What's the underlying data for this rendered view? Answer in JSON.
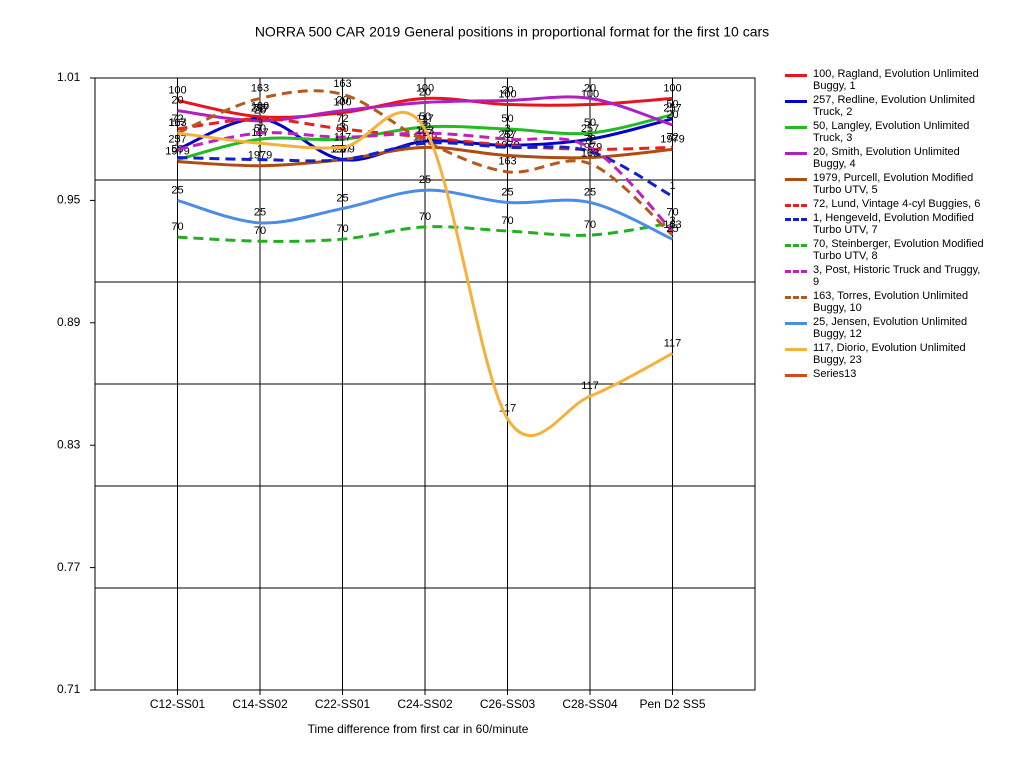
{
  "chart_data": {
    "type": "line",
    "title": "NORRA 500 CAR 2019  General positions in proportional format for the first 10 cars",
    "x_label": "Time difference from first car in 60/minute",
    "categories": [
      "C12-SS01",
      "C14-SS02",
      "C22-SS01",
      "C24-SS02",
      "C26-SS03",
      "C28-SS04",
      "Pen D2 SS5"
    ],
    "ylim": [
      0.71,
      1.01
    ],
    "yticks": [
      0.71,
      0.77,
      0.83,
      0.89,
      0.95,
      1.01
    ],
    "grid_lines": [
      0.76,
      0.81,
      0.86,
      0.91,
      0.96
    ],
    "smooth": true,
    "series": [
      {
        "name": "100, Ragland, Evolution Unlimited Buggy, 1",
        "point_label": "100",
        "color": "#e8141c",
        "dashed": false,
        "values": [
          0.999,
          0.991,
          0.993,
          1.0,
          0.997,
          0.997,
          1.0
        ]
      },
      {
        "name": "257, Redline, Evolution Unlimited Truck, 2",
        "point_label": "257",
        "color": "#0000cc",
        "dashed": false,
        "values": [
          0.975,
          0.99,
          0.97,
          0.979,
          0.977,
          0.98,
          0.99
        ]
      },
      {
        "name": "50, Langley, Evolution Unlimited Truck, 3",
        "point_label": "50",
        "color": "#22bb22",
        "dashed": false,
        "values": [
          0.97,
          0.98,
          0.98,
          0.986,
          0.985,
          0.983,
          0.992
        ]
      },
      {
        "name": "20, Smith, Evolution Unlimited Buggy, 4",
        "point_label": "20",
        "color": "#b020c0",
        "dashed": false,
        "values": [
          0.994,
          0.989,
          0.994,
          0.998,
          0.999,
          1.0,
          0.987
        ]
      },
      {
        "name": "1979, Purcell, Evolution Modified Turbo UTV, 5",
        "point_label": "1979",
        "color": "#b04c10",
        "dashed": false,
        "values": [
          0.969,
          0.967,
          0.97,
          0.976,
          0.972,
          0.971,
          0.975
        ]
      },
      {
        "name": "72, Lund, Vintage 4-cyl Buggies, 6",
        "point_label": "72",
        "color": "#e82020",
        "dashed": true,
        "values": [
          0.985,
          0.99,
          0.985,
          0.981,
          0.977,
          0.975,
          0.976
        ]
      },
      {
        "name": "1, Hengeveld, Evolution Modified Turbo UTV, 7",
        "point_label": "1",
        "color": "#1020d0",
        "dashed": true,
        "values": [
          0.971,
          0.97,
          0.97,
          0.978,
          0.976,
          0.974,
          0.952
        ]
      },
      {
        "name": "70, Steinberger, Evolution Modified Turbo UTV, 8",
        "point_label": "70",
        "color": "#20b020",
        "dashed": true,
        "values": [
          0.932,
          0.93,
          0.931,
          0.937,
          0.935,
          0.933,
          0.939
        ]
      },
      {
        "name": "3, Post, Historic Truck and Truggy, 9",
        "point_label": "3",
        "color": "#c020c0",
        "dashed": true,
        "values": [
          0.975,
          0.983,
          0.981,
          0.983,
          0.98,
          0.976,
          0.935
        ]
      },
      {
        "name": "163, Torres, Evolution Unlimited Buggy, 10",
        "point_label": "163",
        "color": "#b45a1e",
        "dashed": true,
        "values": [
          0.983,
          1.0,
          1.002,
          0.979,
          0.964,
          0.968,
          0.933
        ]
      },
      {
        "name": "25, Jensen, Evolution Unlimited Buggy, 12",
        "point_label": "25",
        "color": "#4a8ce8",
        "dashed": false,
        "values": [
          0.95,
          0.939,
          0.946,
          0.955,
          0.949,
          0.949,
          0.931
        ]
      },
      {
        "name": "117, Diorio, Evolution Unlimited Buggy, 23",
        "point_label": "117",
        "color": "#f5b13c",
        "dashed": false,
        "values": [
          0.983,
          0.978,
          0.976,
          0.985,
          0.843,
          0.854,
          0.875
        ]
      },
      {
        "name": "Series13",
        "color": "#d04a1c",
        "dashed": false,
        "values": [
          null,
          null,
          null,
          null,
          null,
          null,
          null
        ]
      }
    ]
  }
}
